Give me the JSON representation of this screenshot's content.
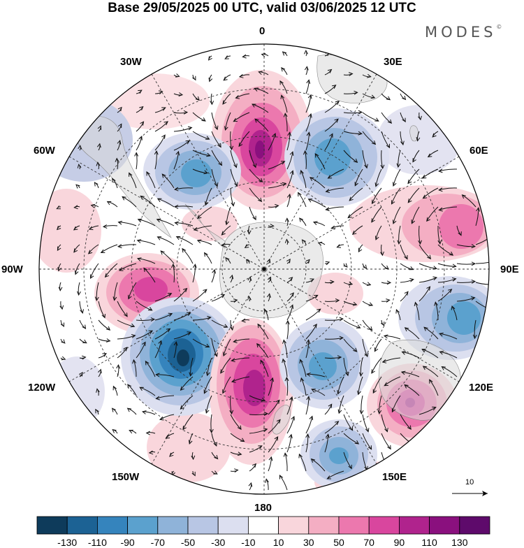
{
  "title": "Base 29/05/2025 00 UTC, valid 03/06/2025 12 UTC",
  "brand": {
    "name": "MODES",
    "mark": "©"
  },
  "map": {
    "projection": "south-polar-stereographic",
    "longitude_labels": {
      "top": "0",
      "bottom": "180",
      "left": "90W",
      "right": "90E",
      "upper_left_1": "30W",
      "upper_left_2": "60W",
      "upper_right_1": "30E",
      "upper_right_2": "60E",
      "lower_left_1": "120W",
      "lower_left_2": "150W",
      "lower_right_1": "120E",
      "lower_right_2": "150E"
    },
    "reference_vector": {
      "label": "10",
      "value": 10
    }
  },
  "colorbar": {
    "ticks": [
      "-130",
      "-110",
      "-90",
      "-70",
      "-50",
      "-30",
      "-10",
      "10",
      "30",
      "50",
      "70",
      "90",
      "110",
      "130"
    ],
    "colors": [
      "#0e3b5b",
      "#1c6294",
      "#3584bd",
      "#5ba1ce",
      "#8fb3d9",
      "#b8c6e4",
      "#dcdff0",
      "#ffffff",
      "#f9d6dc",
      "#f4aec3",
      "#ec78ae",
      "#d9469e",
      "#b0238d",
      "#8a107e",
      "#5e0a6b"
    ]
  },
  "chart_data": {
    "type": "heatmap",
    "field": "geopotential height anomaly (filled) with wind vectors",
    "anomaly_centers": [
      {
        "lon": "0",
        "sign": "positive",
        "peak": 110
      },
      {
        "lon": "30E",
        "sign": "negative",
        "peak": -70
      },
      {
        "lon": "50W",
        "sign": "negative",
        "peak": -70
      },
      {
        "lon": "75E",
        "sign": "positive",
        "peak": 70
      },
      {
        "lon": "100W",
        "sign": "positive",
        "peak": 90
      },
      {
        "lon": "105E",
        "sign": "negative",
        "peak": -70
      },
      {
        "lon": "130W",
        "sign": "negative",
        "peak": -130
      },
      {
        "lon": "170W",
        "sign": "positive",
        "peak": 110
      },
      {
        "lon": "150E",
        "sign": "negative",
        "peak": -70
      },
      {
        "lon": "125E",
        "sign": "positive",
        "peak": 90
      },
      {
        "lon": "160E",
        "sign": "negative",
        "peak": -70
      }
    ]
  }
}
